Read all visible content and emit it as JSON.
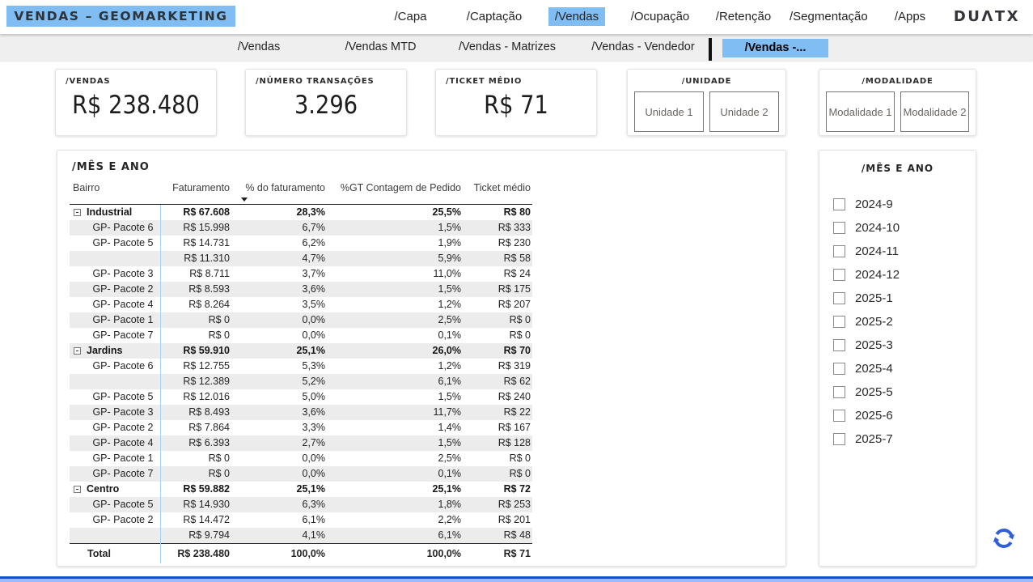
{
  "header": {
    "title": "VENDAS – GEOMARKETING",
    "logo": "DUΛTX",
    "nav": [
      {
        "label": "/Capa",
        "active": false
      },
      {
        "label": "/Captação",
        "active": false
      },
      {
        "label": "/Vendas",
        "active": true
      },
      {
        "label": "/Ocupação",
        "active": false
      },
      {
        "label": "/Retenção",
        "active": false
      },
      {
        "label": "/Segmentação",
        "active": false
      },
      {
        "label": "/Apps",
        "active": false
      }
    ]
  },
  "subnav": [
    {
      "label": "/Vendas",
      "active": false
    },
    {
      "label": "/Vendas MTD",
      "active": false
    },
    {
      "label": "/Vendas - Matrizes",
      "active": false
    },
    {
      "label": "/Vendas - Vendedor",
      "active": false
    },
    {
      "label": "/Vendas -...",
      "active": true
    }
  ],
  "kpis": [
    {
      "label": "/VENDAS",
      "value": "R$ 238.480"
    },
    {
      "label": "/NÚMERO TRANSAÇÕES",
      "value": "3.296"
    },
    {
      "label": "/TICKET MÉDIO",
      "value": "R$ 71"
    }
  ],
  "slicers": {
    "unidade": {
      "title": "/UNIDADE",
      "buttons": [
        "Unidade 1",
        "Unidade 2"
      ]
    },
    "modalidade": {
      "title": "/MODALIDADE",
      "buttons": [
        "Modalidade 1",
        "Modalidade 2"
      ]
    }
  },
  "table": {
    "title": "/MÊS E ANO",
    "columns": [
      "Bairro",
      "Faturamento",
      "% do faturamento",
      "%GT Contagem de Pedido",
      "Ticket médio"
    ],
    "sort_column": "% do faturamento",
    "sort_direction": "descending",
    "rows": [
      {
        "name": "Industrial",
        "type": "group",
        "v": [
          "R$ 67.608",
          "28,3%",
          "25,5%",
          "R$ 80"
        ]
      },
      {
        "name": "GP- Pacote 6",
        "type": "child",
        "v": [
          "R$ 15.998",
          "6,7%",
          "1,5%",
          "R$ 333"
        ]
      },
      {
        "name": "GP- Pacote 5",
        "type": "child",
        "v": [
          "R$ 14.731",
          "6,2%",
          "1,9%",
          "R$ 230"
        ]
      },
      {
        "name": "",
        "type": "child",
        "v": [
          "R$ 11.310",
          "4,7%",
          "5,9%",
          "R$ 58"
        ]
      },
      {
        "name": "GP- Pacote 3",
        "type": "child",
        "v": [
          "R$ 8.711",
          "3,7%",
          "11,0%",
          "R$ 24"
        ]
      },
      {
        "name": "GP- Pacote 2",
        "type": "child",
        "v": [
          "R$ 8.593",
          "3,6%",
          "1,5%",
          "R$ 175"
        ]
      },
      {
        "name": "GP- Pacote 4",
        "type": "child",
        "v": [
          "R$ 8.264",
          "3,5%",
          "1,2%",
          "R$ 207"
        ]
      },
      {
        "name": "GP- Pacote 1",
        "type": "child",
        "v": [
          "R$ 0",
          "0,0%",
          "2,5%",
          "R$ 0"
        ]
      },
      {
        "name": "GP- Pacote 7",
        "type": "child",
        "v": [
          "R$ 0",
          "0,0%",
          "0,1%",
          "R$ 0"
        ]
      },
      {
        "name": "Jardins",
        "type": "group",
        "v": [
          "R$ 59.910",
          "25,1%",
          "26,0%",
          "R$ 70"
        ]
      },
      {
        "name": "GP- Pacote 6",
        "type": "child",
        "v": [
          "R$ 12.755",
          "5,3%",
          "1,2%",
          "R$ 319"
        ]
      },
      {
        "name": "",
        "type": "child",
        "v": [
          "R$ 12.389",
          "5,2%",
          "6,1%",
          "R$ 62"
        ]
      },
      {
        "name": "GP- Pacote 5",
        "type": "child",
        "v": [
          "R$ 12.016",
          "5,0%",
          "1,5%",
          "R$ 240"
        ]
      },
      {
        "name": "GP- Pacote 3",
        "type": "child",
        "v": [
          "R$ 8.493",
          "3,6%",
          "11,7%",
          "R$ 22"
        ]
      },
      {
        "name": "GP- Pacote 2",
        "type": "child",
        "v": [
          "R$ 7.864",
          "3,3%",
          "1,4%",
          "R$ 167"
        ]
      },
      {
        "name": "GP- Pacote 4",
        "type": "child",
        "v": [
          "R$ 6.393",
          "2,7%",
          "1,5%",
          "R$ 128"
        ]
      },
      {
        "name": "GP- Pacote 1",
        "type": "child",
        "v": [
          "R$ 0",
          "0,0%",
          "2,5%",
          "R$ 0"
        ]
      },
      {
        "name": "GP- Pacote 7",
        "type": "child",
        "v": [
          "R$ 0",
          "0,0%",
          "0,1%",
          "R$ 0"
        ]
      },
      {
        "name": "Centro",
        "type": "group",
        "v": [
          "R$ 59.882",
          "25,1%",
          "25,1%",
          "R$ 72"
        ]
      },
      {
        "name": "GP- Pacote 5",
        "type": "child",
        "v": [
          "R$ 14.930",
          "6,3%",
          "1,8%",
          "R$ 253"
        ]
      },
      {
        "name": "GP- Pacote 2",
        "type": "child",
        "v": [
          "R$ 14.472",
          "6,1%",
          "2,2%",
          "R$ 201"
        ]
      },
      {
        "name": "",
        "type": "child",
        "v": [
          "R$ 9.794",
          "4,1%",
          "6,1%",
          "R$ 48"
        ]
      },
      {
        "name": "Total",
        "type": "total",
        "v": [
          "R$ 238.480",
          "100,0%",
          "100,0%",
          "R$ 71"
        ]
      }
    ]
  },
  "month_filter": {
    "title": "/MÊS E ANO",
    "items": [
      "2024-9",
      "2024-10",
      "2024-11",
      "2024-12",
      "2025-1",
      "2025-2",
      "2025-3",
      "2025-4",
      "2025-5",
      "2025-6",
      "2025-7"
    ],
    "checked": []
  },
  "colors": {
    "accent": "#7fbdf2",
    "bottom_bar_dark": "#1353c8",
    "bottom_bar_light": "#9dbdee",
    "refresh_blue": "#2e5ed8",
    "row_alt": "#ececec",
    "column_divider": "#a8d2f4"
  }
}
